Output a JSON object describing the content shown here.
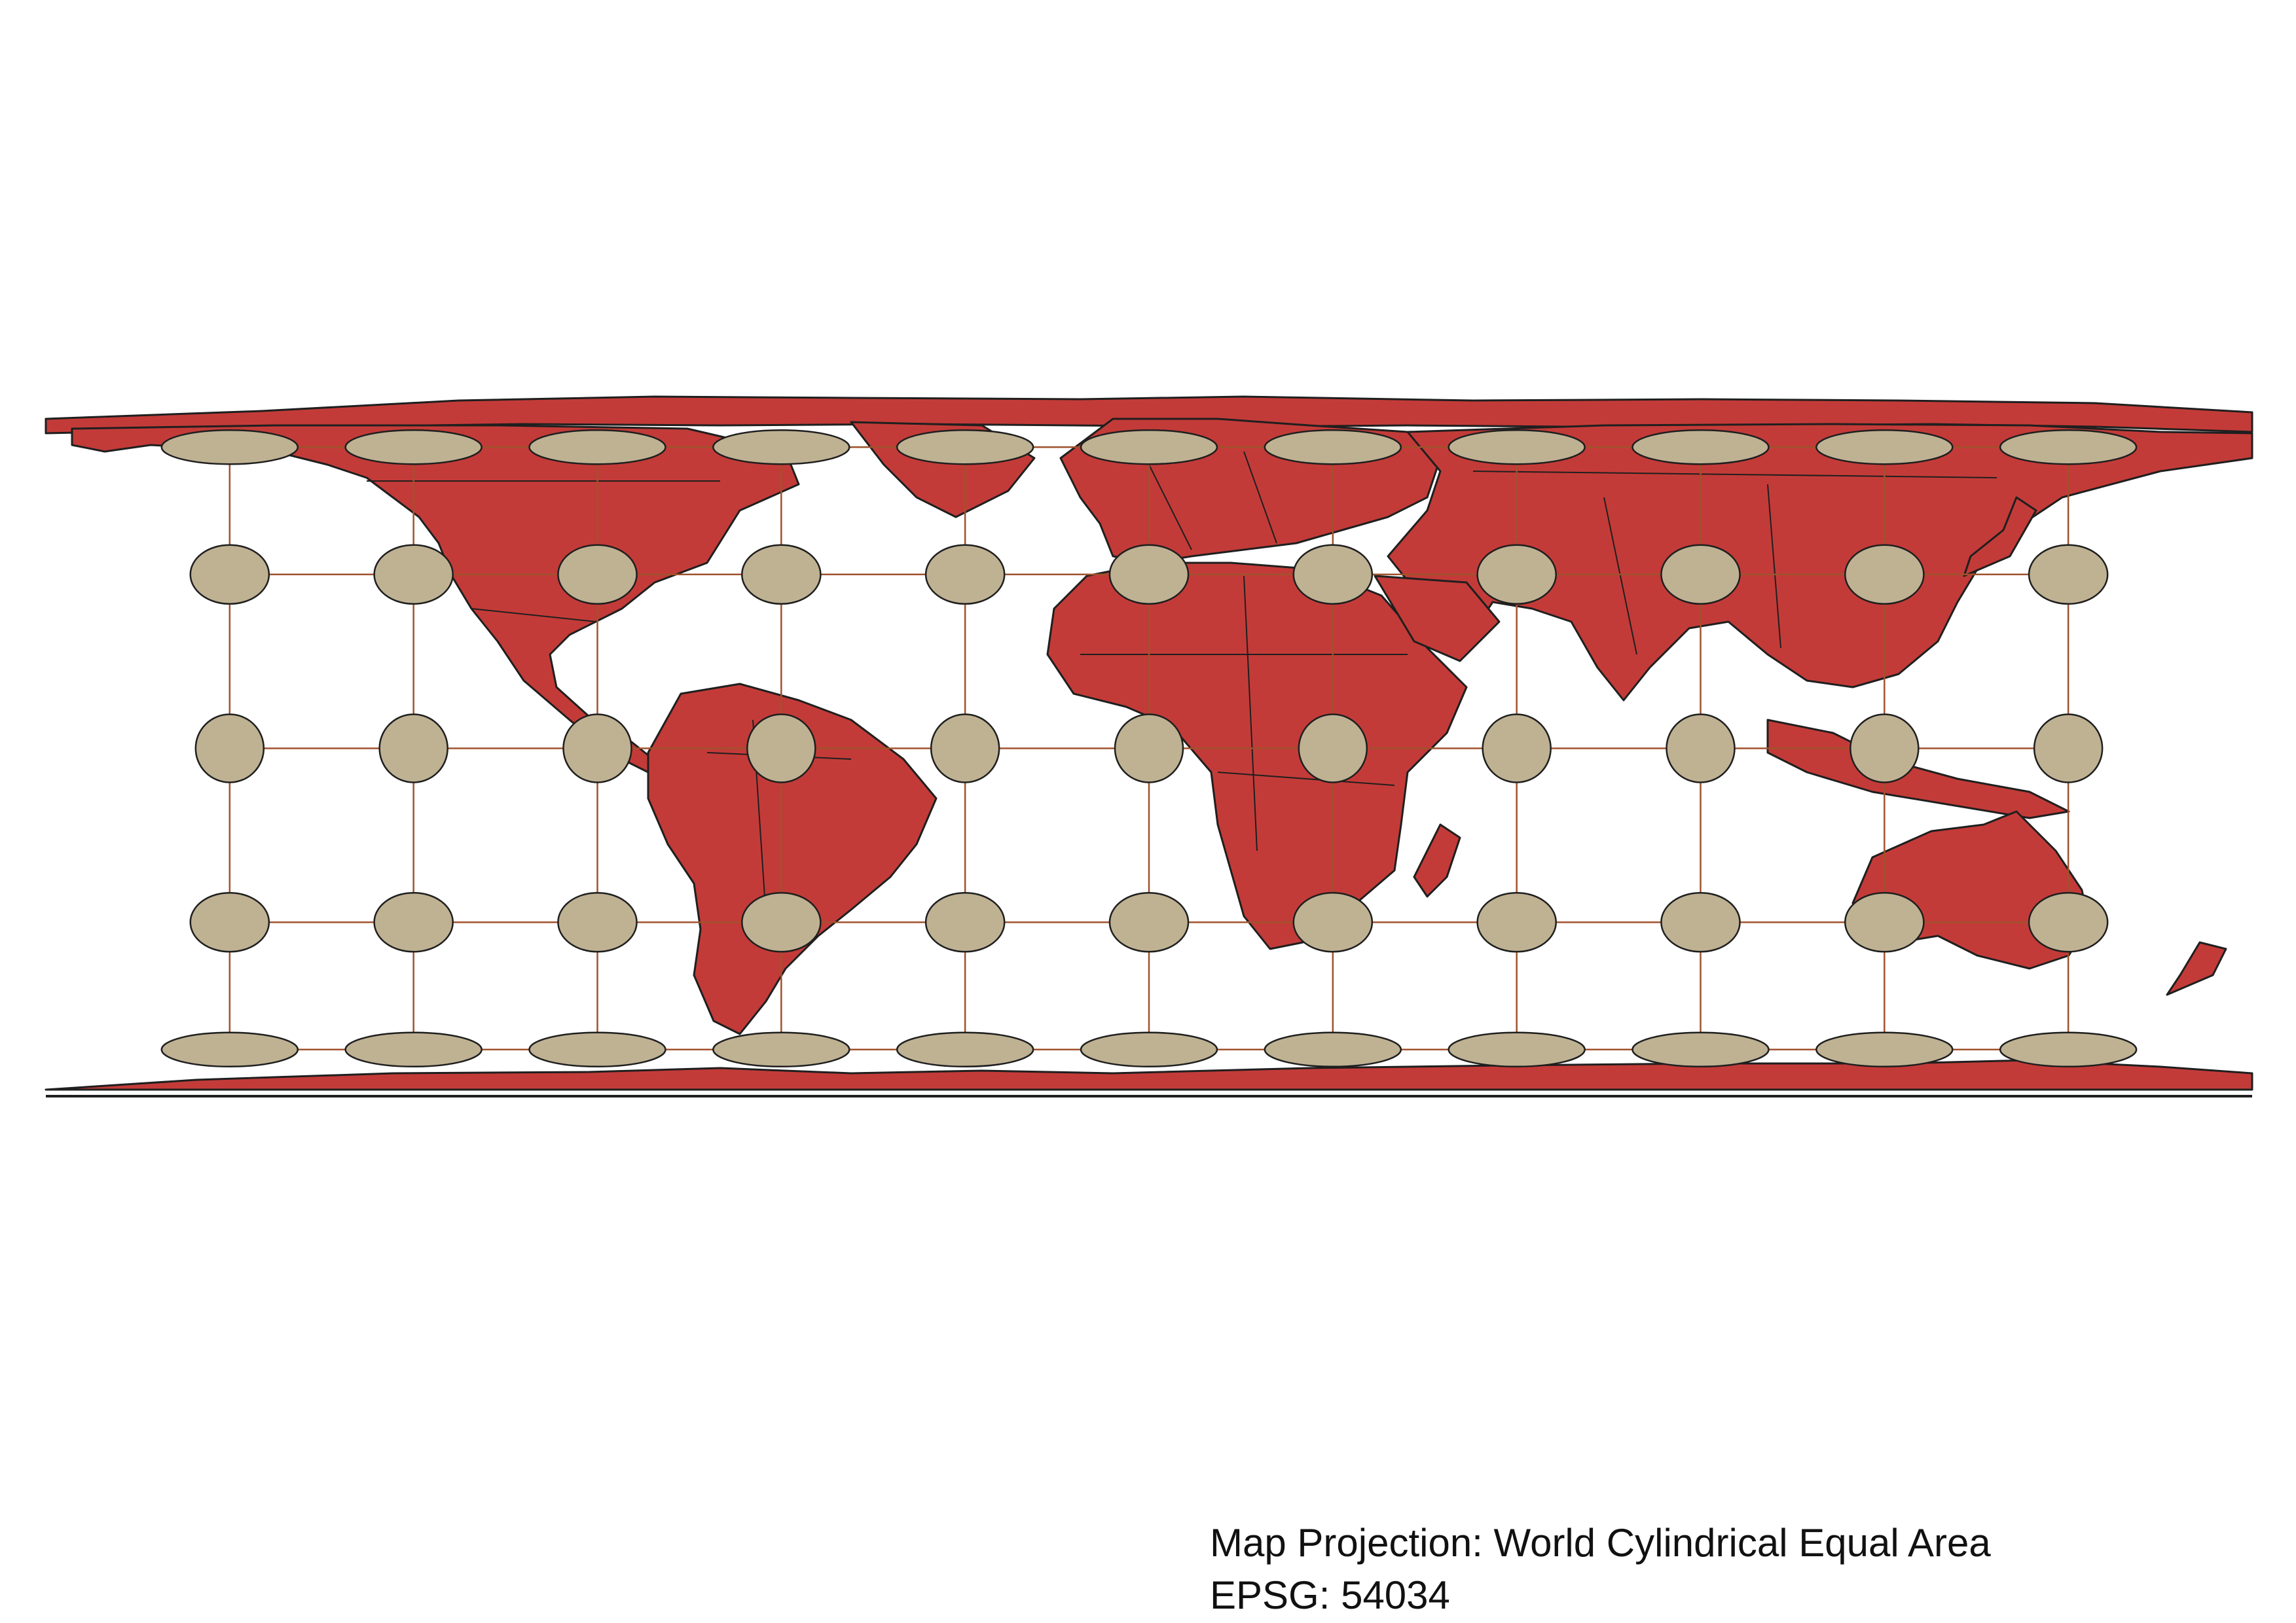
{
  "caption": {
    "projection_line": "Map Projection: World Cylindrical Equal Area",
    "epsg_line": "EPSG: 54034"
  },
  "map": {
    "projection": "World Cylindrical Equal Area",
    "epsg": "54034",
    "land_fill": "#c33b38",
    "land_stroke": "#1f1f1f",
    "graticule_color": "#a0522d",
    "indicatrix_fill": "#bfb293",
    "indicatrix_stroke": "#1f1f1f",
    "background": "#ffffff",
    "graticule_longitudes": [
      -150,
      -120,
      -90,
      -60,
      -30,
      0,
      30,
      60,
      90,
      120,
      150
    ],
    "graticule_latitudes": [
      -60,
      -30,
      0,
      30,
      60
    ],
    "indicatrix_latitudes": [
      -60,
      -30,
      0,
      30,
      60
    ]
  }
}
